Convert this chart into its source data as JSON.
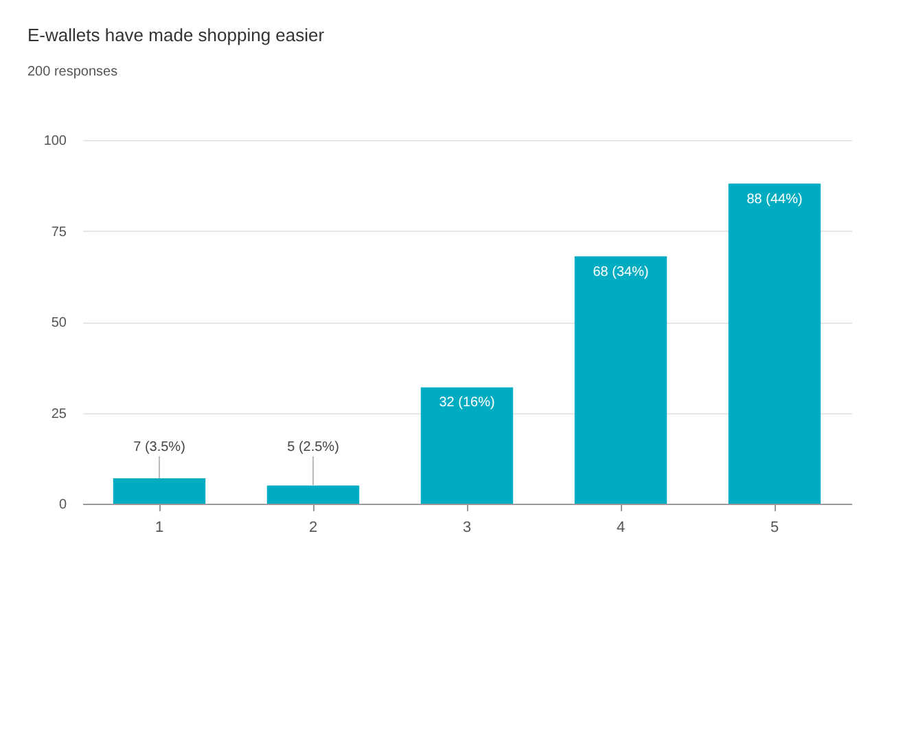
{
  "chart_data": {
    "type": "bar",
    "title": "E-wallets have made shopping easier",
    "subtitle": "200 responses",
    "categories": [
      "1",
      "2",
      "3",
      "4",
      "5"
    ],
    "values": [
      7,
      5,
      32,
      68,
      88
    ],
    "value_labels": [
      "7 (3.5%)",
      "5 (2.5%)",
      "32 (16%)",
      "68 (34%)",
      "88 (44%)"
    ],
    "color": "#00acc1",
    "ylim": [
      0,
      100
    ],
    "yticks": [
      0,
      25,
      50,
      75,
      100
    ],
    "grid": "y"
  }
}
